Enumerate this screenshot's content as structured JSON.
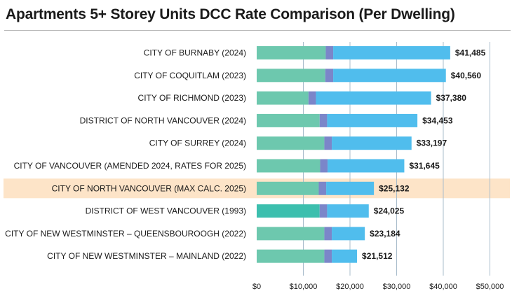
{
  "chart_data": {
    "type": "bar",
    "orientation": "horizontal",
    "stacked": true,
    "title": "Apartments 5+ Storey Units DCC Rate Comparison (Per Dwelling)",
    "xlabel": "",
    "ylabel": "",
    "xlim": [
      0,
      52000
    ],
    "x_ticks": [
      0,
      10000,
      20000,
      30000,
      40000,
      50000
    ],
    "x_tick_labels": [
      "$0",
      "$10,000",
      "$20,000",
      "$30,000",
      "$40,000",
      "$50,000"
    ],
    "grid": "vertical",
    "highlighted_category": "CITY OF NORTH VANCOUVER (MAX CALC. 2025)",
    "categories": [
      "CITY OF BURNABY (2024)",
      "CITY OF COQUITLAM (2023)",
      "CITY OF RICHMOND (2023)",
      "DISTRICT OF NORTH VANCOUVER (2024)",
      "CITY OF SURREY (2024)",
      "CITY OF VANCOUVER (AMENDED 2024, RATES FOR 2025)",
      "CITY OF NORTH VANCOUVER (MAX CALC. 2025)",
      "DISTRICT OF WEST VANCOUVER (1993)",
      "CITY OF NEW WESTMINSTER – QUEENSBOUROOGH (2022)",
      "CITY OF NEW WESTMINSTER – MAINLAND (2022)"
    ],
    "series": [
      {
        "values": [
          14800,
          14700,
          11100,
          13500,
          14500,
          13600,
          13300,
          13500,
          14500,
          14500
        ],
        "color": "#6dc8ae"
      },
      {
        "values": [
          1600,
          1700,
          1600,
          1600,
          1600,
          1600,
          1600,
          1600,
          1600,
          1600
        ],
        "color": "#7b86c9"
      },
      {
        "values": [
          25085,
          24160,
          24680,
          19353,
          17097,
          16445,
          10232,
          8925,
          7084,
          5412
        ],
        "color": "#50bded"
      }
    ],
    "totals": [
      41485,
      40560,
      37380,
      34453,
      33197,
      31645,
      25132,
      24025,
      23184,
      21512
    ],
    "total_labels": [
      "$41,485",
      "$40,560",
      "$37,380",
      "$34,453",
      "$33,197",
      "$31,645",
      "$25,132",
      "$24,025",
      "$23,184",
      "$21,512"
    ],
    "colors": {
      "grid": "#a9bccb",
      "highlight_band": "#fde4c8",
      "first_segment_alt": "#3cbfae"
    }
  }
}
